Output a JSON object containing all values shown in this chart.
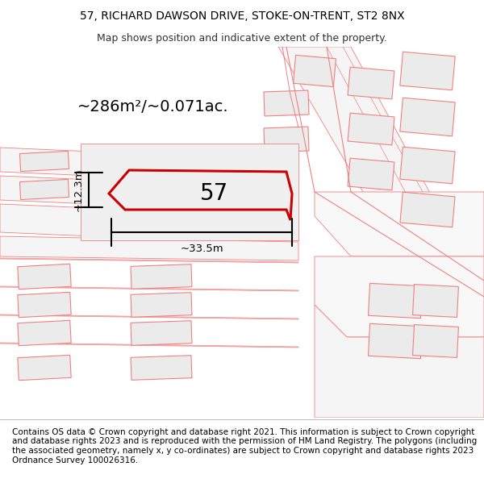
{
  "title": "57, RICHARD DAWSON DRIVE, STOKE-ON-TRENT, ST2 8NX",
  "subtitle": "Map shows position and indicative extent of the property.",
  "area_label": "~286m²/~0.071ac.",
  "dim_width": "~33.5m",
  "dim_height": "~12.3m",
  "plot_number": "57",
  "footer": "Contains OS data © Crown copyright and database right 2021. This information is subject to Crown copyright and database rights 2023 and is reproduced with the permission of HM Land Registry. The polygons (including the associated geometry, namely x, y co-ordinates) are subject to Crown copyright and database rights 2023 Ordnance Survey 100026316.",
  "bg_color": "#ffffff",
  "neighbor_fill": "#ebebeb",
  "neighbor_stroke": "#f08080",
  "plot_fill": "#e0e0e0",
  "plot_stroke": "#cc0000",
  "road_stroke": "#f08080",
  "title_fontsize": 10,
  "subtitle_fontsize": 9,
  "area_fontsize": 14,
  "number_fontsize": 20,
  "dim_fontsize": 9.5,
  "footer_fontsize": 7.5
}
